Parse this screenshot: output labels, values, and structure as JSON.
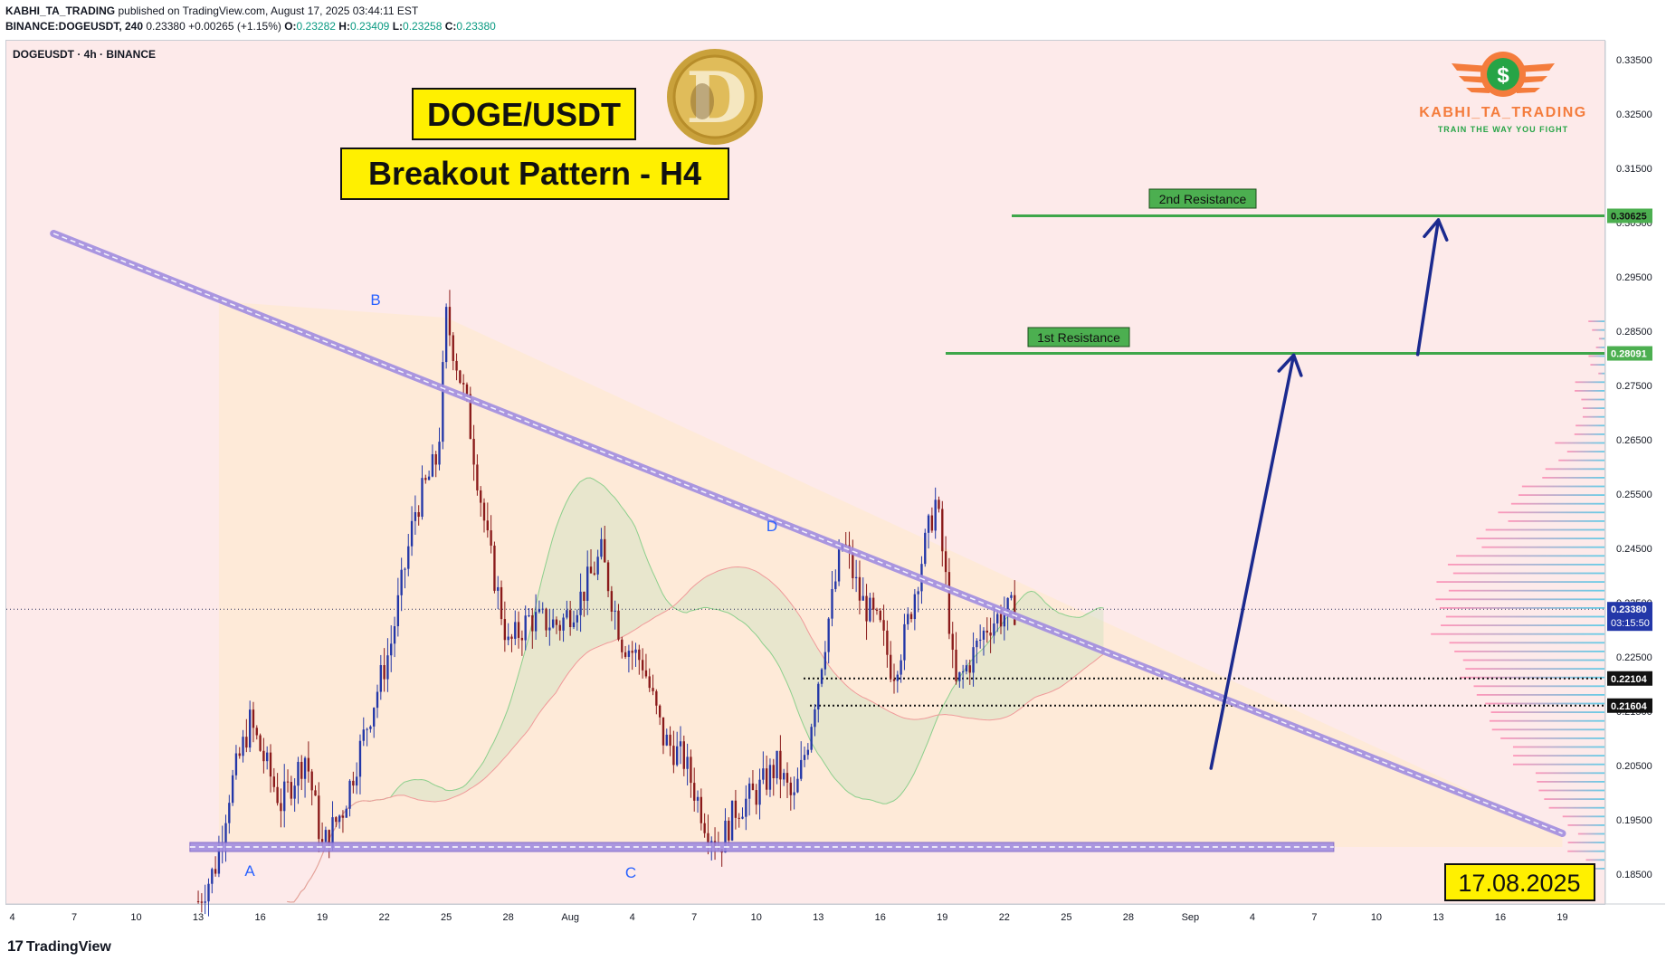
{
  "header": {
    "author": "KABHI_TA_TRADING",
    "published_text": "published on TradingView.com, August 17, 2025 03:44:11 EST",
    "symbol_line": "BINANCE:DOGEUSDT, 240",
    "last": "0.23380",
    "change": "+0.00265 (+1.15%)",
    "o_label": "O:",
    "o": "0.23282",
    "h_label": "H:",
    "h": "0.23409",
    "l_label": "L:",
    "l": "0.23258",
    "c_label": "C:",
    "c": "0.23380"
  },
  "chart_title": "DOGEUSDT · 4h · BINANCE",
  "annotations": {
    "title_box": "DOGE/USDT",
    "subtitle_box": "Breakout Pattern - H4",
    "date_box": "17.08.2025",
    "resistance_1": "1st Resistance",
    "resistance_2": "2nd Resistance",
    "point_a": "A",
    "point_b": "B",
    "point_c": "C",
    "point_d": "D"
  },
  "brand": {
    "name": "KABHI_TA_TRADING",
    "tagline": "TRAIN THE WAY YOU FIGHT",
    "coin_letter": "D"
  },
  "price_tags": {
    "r2": "0.30625",
    "r1": "0.28091",
    "current": "0.23380",
    "countdown": "03:15:50",
    "s1": "0.22104",
    "s2": "0.21604"
  },
  "footer": {
    "logo_text": "TradingView",
    "logo_mark": "17"
  },
  "colors": {
    "bull": "#2337a8",
    "bear": "#8a1a1a",
    "resistance": "#3ea64a",
    "trendline": "#a28de0",
    "arrow": "#1b2a8f",
    "title_bg": "#fff000"
  },
  "chart_data": {
    "type": "candlestick",
    "timeframe": "4h",
    "ylim": [
      0.178,
      0.337
    ],
    "y_ticks": [
      0.335,
      0.325,
      0.315,
      0.305,
      0.295,
      0.285,
      0.275,
      0.265,
      0.255,
      0.245,
      0.235,
      0.225,
      0.215,
      0.205,
      0.195,
      0.185
    ],
    "y_tick_labels": [
      "0.33500",
      "0.32500",
      "0.31500",
      "0.30500",
      "0.29500",
      "0.28500",
      "0.27500",
      "0.26500",
      "0.25500",
      "0.24500",
      "0.23500",
      "0.22500",
      "0.21500",
      "0.20500",
      "0.19500",
      "0.18500"
    ],
    "x_labels": [
      "4",
      "7",
      "10",
      "13",
      "16",
      "19",
      "22",
      "25",
      "28",
      "Aug",
      "4",
      "7",
      "10",
      "13",
      "16",
      "19",
      "22",
      "25",
      "28",
      "Sep",
      "4",
      "7",
      "10",
      "13",
      "16",
      "19"
    ],
    "levels": {
      "resistance_2": 0.30625,
      "resistance_1": 0.28091,
      "current": 0.2338,
      "support_1": 0.22104,
      "support_2": 0.21604
    },
    "points": {
      "A": {
        "day": 15,
        "price": 0.1885
      },
      "B": {
        "day": 21,
        "price": 0.2875
      },
      "C": {
        "day": 34,
        "price": 0.189
      },
      "D": {
        "day": 40,
        "price": 0.2465
      }
    },
    "trendline": [
      {
        "day": 2,
        "price": 0.303
      },
      {
        "day": 75,
        "price": 0.1925
      }
    ],
    "support_line": [
      {
        "day": 4,
        "price": 0.19
      },
      {
        "day": 60,
        "price": 0.19
      }
    ],
    "path": [
      [
        9,
        0.18
      ],
      [
        9.8,
        0.186
      ],
      [
        10.5,
        0.2
      ],
      [
        11.5,
        0.213
      ],
      [
        12.3,
        0.205
      ],
      [
        13,
        0.198
      ],
      [
        14.2,
        0.207
      ],
      [
        15,
        0.19
      ],
      [
        16,
        0.197
      ],
      [
        17.2,
        0.213
      ],
      [
        18.3,
        0.227
      ],
      [
        19.5,
        0.252
      ],
      [
        20.6,
        0.262
      ],
      [
        21,
        0.2875
      ],
      [
        22,
        0.271
      ],
      [
        23,
        0.246
      ],
      [
        24,
        0.227
      ],
      [
        25,
        0.232
      ],
      [
        26.5,
        0.231
      ],
      [
        27.5,
        0.236
      ],
      [
        28.5,
        0.244
      ],
      [
        29.5,
        0.228
      ],
      [
        30.5,
        0.224
      ],
      [
        31.5,
        0.21
      ],
      [
        32.5,
        0.206
      ],
      [
        33.5,
        0.195
      ],
      [
        34.2,
        0.19
      ],
      [
        35,
        0.197
      ],
      [
        36,
        0.2
      ],
      [
        37,
        0.205
      ],
      [
        37.8,
        0.198
      ],
      [
        38.5,
        0.21
      ],
      [
        39.5,
        0.232
      ],
      [
        40.2,
        0.2465
      ],
      [
        41,
        0.236
      ],
      [
        42,
        0.23
      ],
      [
        42.6,
        0.222
      ],
      [
        43.2,
        0.229
      ],
      [
        44,
        0.243
      ],
      [
        44.7,
        0.254
      ],
      [
        45.2,
        0.238
      ],
      [
        45.6,
        0.219
      ],
      [
        46.3,
        0.224
      ],
      [
        47.2,
        0.231
      ],
      [
        48,
        0.233
      ],
      [
        48.5,
        0.2338
      ]
    ],
    "projection": [
      {
        "from": {
          "day": 58,
          "price": 0.2045
        },
        "to": {
          "day": 62,
          "price": 0.2806
        },
        "target": "resistance_1"
      },
      {
        "from": {
          "day": 68,
          "price": 0.2807
        },
        "to": {
          "day": 69,
          "price": 0.3055
        },
        "target": "resistance_2"
      }
    ]
  }
}
